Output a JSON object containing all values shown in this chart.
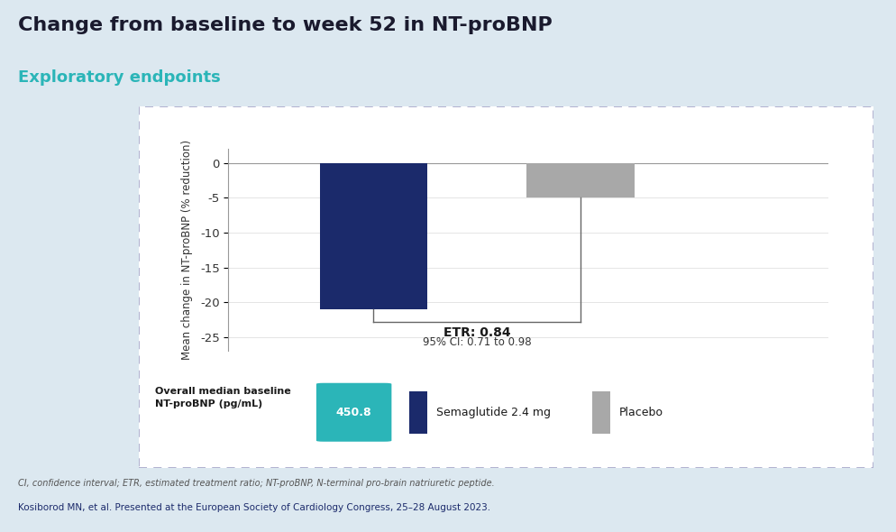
{
  "title": "Change from baseline to week 52 in NT-proBNP",
  "subtitle": "Exploratory endpoints",
  "title_color": "#1a1a2e",
  "subtitle_color": "#2bb5b8",
  "bar_values": [
    -21.0,
    -5.0
  ],
  "bar_labels": [
    "Semaglutide 2.4 mg",
    "Placebo"
  ],
  "bar_colors": [
    "#1b2a6b",
    "#a8a8a8"
  ],
  "bar_positions": [
    1,
    2
  ],
  "bar_width": 0.52,
  "ylim": [
    -27,
    2
  ],
  "yticks": [
    0,
    -5,
    -10,
    -15,
    -20,
    -25
  ],
  "ylabel": "Mean change in NT-proBNP (% reduction)",
  "etr_text": "ETR: 0.84",
  "ci_text": "95% CI: 0.71 to 0.98",
  "baseline_label": "Overall median baseline\nNT-proBNP (pg/mL)",
  "baseline_value": "450.8",
  "baseline_box_color": "#2bb5b8",
  "footnote1": "CI, confidence interval; ETR, estimated treatment ratio; NT-proBNP, N-terminal pro-brain natriuretic peptide.",
  "footnote2": "Kosiborod MN, et al. Presented at the European Society of Cardiology Congress, 25–28 August 2023.",
  "footnote2_color": "#1b2a6b",
  "bg_color": "#dce8f0",
  "panel_bg": "#ffffff",
  "xlim": [
    0.3,
    3.2
  ]
}
